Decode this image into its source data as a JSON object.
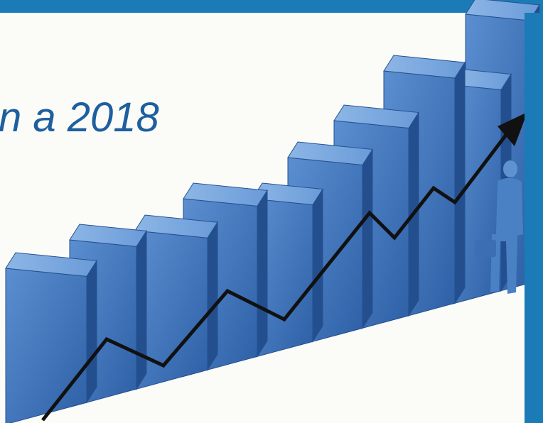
{
  "slide": {
    "title_fragment": "n a 2018"
  }
}
